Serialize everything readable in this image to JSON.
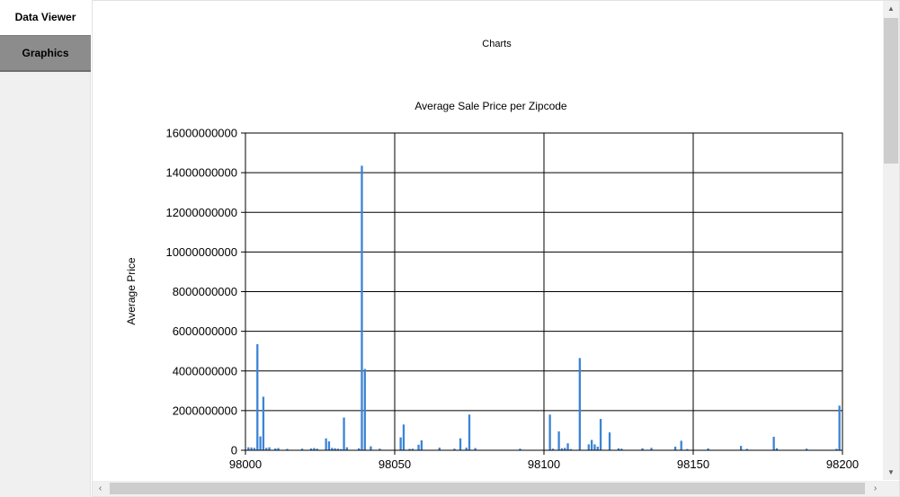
{
  "nav": {
    "data_viewer_label": "Data Viewer",
    "graphics_label": "Graphics"
  },
  "section_title": "Charts",
  "chart_data": {
    "type": "bar",
    "title": "Average Sale Price per Zipcode",
    "xlabel": "",
    "ylabel": "Average Price",
    "xlim": [
      98000,
      98200
    ],
    "ylim": [
      0,
      16000000000
    ],
    "x_ticks": [
      98000,
      98050,
      98100,
      98150,
      98200
    ],
    "y_ticks": [
      0,
      2000000000,
      4000000000,
      6000000000,
      8000000000,
      10000000000,
      12000000000,
      14000000000,
      16000000000
    ],
    "y_tick_labels": [
      "0",
      "2000000000",
      "4000000000",
      "6000000000",
      "8000000000",
      "10000000000",
      "12000000000",
      "14000000000",
      "16000000000"
    ],
    "x_tick_labels": [
      "98000",
      "98050",
      "98100",
      "98150",
      "98200"
    ],
    "grid": true,
    "bar_color": "#3a84d6",
    "x": [
      98001,
      98002,
      98003,
      98004,
      98005,
      98006,
      98007,
      98008,
      98010,
      98011,
      98014,
      98019,
      98022,
      98023,
      98024,
      98027,
      98028,
      98029,
      98030,
      98031,
      98032,
      98033,
      98034,
      98038,
      98039,
      98040,
      98042,
      98045,
      98052,
      98053,
      98055,
      98056,
      98058,
      98059,
      98065,
      98070,
      98072,
      98074,
      98075,
      98077,
      98092,
      98102,
      98103,
      98105,
      98106,
      98107,
      98108,
      98109,
      98112,
      98115,
      98116,
      98117,
      98118,
      98119,
      98122,
      98125,
      98126,
      98133,
      98136,
      98144,
      98146,
      98148,
      98155,
      98166,
      98168,
      98177,
      98178,
      98188,
      98198,
      98199
    ],
    "values": [
      150000000,
      140000000,
      120000000,
      5350000000,
      700000000,
      2700000000,
      120000000,
      150000000,
      90000000,
      110000000,
      70000000,
      80000000,
      90000000,
      110000000,
      80000000,
      600000000,
      450000000,
      120000000,
      100000000,
      80000000,
      60000000,
      1650000000,
      150000000,
      100000000,
      14350000000,
      4100000000,
      200000000,
      80000000,
      650000000,
      1300000000,
      70000000,
      80000000,
      280000000,
      500000000,
      130000000,
      80000000,
      600000000,
      130000000,
      1800000000,
      110000000,
      80000000,
      1800000000,
      80000000,
      950000000,
      100000000,
      120000000,
      350000000,
      60000000,
      4650000000,
      300000000,
      520000000,
      300000000,
      180000000,
      1580000000,
      900000000,
      100000000,
      80000000,
      100000000,
      120000000,
      180000000,
      480000000,
      60000000,
      90000000,
      220000000,
      70000000,
      680000000,
      100000000,
      80000000,
      70000000,
      2250000000
    ]
  }
}
